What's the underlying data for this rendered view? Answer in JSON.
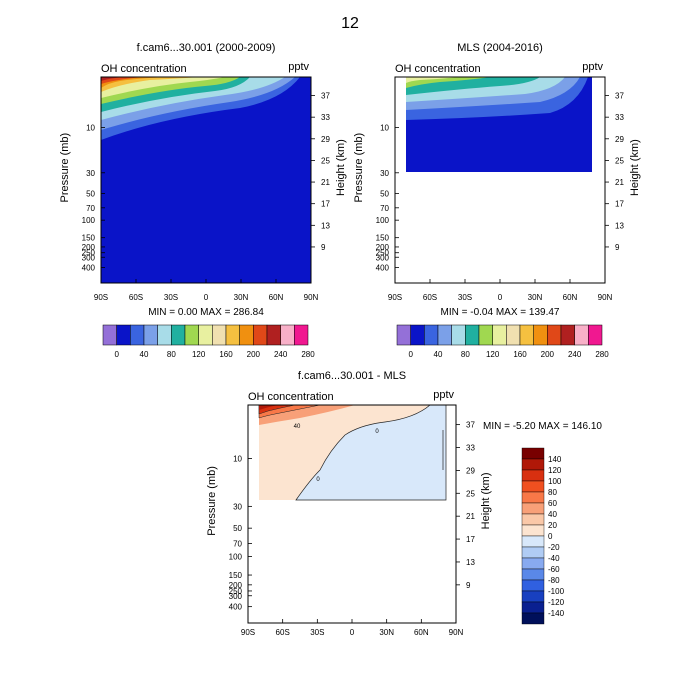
{
  "page_title": "12",
  "chart_data": [
    {
      "type": "contour",
      "title": "f.cam6...30.001 (2000-2009)",
      "left_label": "OH concentration",
      "units": "pptv",
      "xlabel": "",
      "ylabel": "Pressure (mb)",
      "ylabel_right": "Height (km)",
      "x_ticks": [
        "90S",
        "60S",
        "30S",
        "0",
        "30N",
        "60N",
        "90N"
      ],
      "y_ticks": [
        "10",
        "30",
        "50",
        "70",
        "100",
        "150",
        "200",
        "250",
        "300",
        "400"
      ],
      "y_ticks_right": [
        "37",
        "33",
        "29",
        "25",
        "21",
        "17",
        "13",
        "9"
      ],
      "stats": "MIN =   0.00  MAX = 286.84",
      "color_bar": {
        "labels": [
          "0",
          "40",
          "80",
          "120",
          "160",
          "200",
          "240",
          "280"
        ],
        "colors": [
          "#9470d8",
          "#0a14c8",
          "#3a64e0",
          "#7ba0e8",
          "#a8dce8",
          "#20b0a0",
          "#a0d850",
          "#e8f0a0",
          "#f0e0b0",
          "#f5c040",
          "#f09010",
          "#e04818",
          "#b02020",
          "#f8b0c8",
          "#f01890"
        ]
      }
    },
    {
      "type": "contour",
      "title": "MLS (2004-2016)",
      "left_label": "OH concentration",
      "units": "pptv",
      "xlabel": "",
      "ylabel": "Pressure (mb)",
      "ylabel_right": "Height (km)",
      "x_ticks": [
        "90S",
        "60S",
        "30S",
        "0",
        "30N",
        "60N",
        "90N"
      ],
      "y_ticks": [
        "10",
        "30",
        "50",
        "70",
        "100",
        "150",
        "200",
        "250",
        "300",
        "400"
      ],
      "y_ticks_right": [
        "37",
        "33",
        "29",
        "25",
        "21",
        "17",
        "13",
        "9"
      ],
      "stats": "MIN =  -0.04  MAX = 139.47",
      "color_bar": {
        "labels": [
          "0",
          "40",
          "80",
          "120",
          "160",
          "200",
          "240",
          "280"
        ],
        "colors": [
          "#9470d8",
          "#0a14c8",
          "#3a64e0",
          "#7ba0e8",
          "#a8dce8",
          "#20b0a0",
          "#a0d850",
          "#e8f0a0",
          "#f0e0b0",
          "#f5c040",
          "#f09010",
          "#e04818",
          "#b02020",
          "#f8b0c8",
          "#f01890"
        ]
      }
    },
    {
      "type": "contour",
      "title": "f.cam6...30.001 - MLS",
      "left_label": "OH concentration",
      "units": "pptv",
      "xlabel": "",
      "ylabel": "Pressure (mb)",
      "ylabel_right": "Height (km)",
      "x_ticks": [
        "90S",
        "60S",
        "30S",
        "0",
        "30N",
        "60N",
        "90N"
      ],
      "y_ticks": [
        "10",
        "30",
        "50",
        "70",
        "100",
        "150",
        "200",
        "250",
        "300",
        "400"
      ],
      "y_ticks_right": [
        "37",
        "33",
        "29",
        "25",
        "21",
        "17",
        "13",
        "9"
      ],
      "stats": "MIN =  -5.20  MAX = 146.10",
      "contour_labels": [
        "40",
        "0",
        "0"
      ],
      "color_bar": {
        "labels": [
          "140",
          "120",
          "100",
          "80",
          "60",
          "40",
          "20",
          "0",
          "-20",
          "-40",
          "-60",
          "-80",
          "-100",
          "-120",
          "-140"
        ],
        "colors": [
          "#780000",
          "#b01808",
          "#d83010",
          "#f05020",
          "#f87848",
          "#f8a078",
          "#fac8a8",
          "#fce4d0",
          "#d8e8fa",
          "#b0ccf4",
          "#88aaf0",
          "#5a88e8",
          "#3060e0",
          "#1840c0",
          "#0a2090",
          "#00105a"
        ]
      }
    }
  ]
}
